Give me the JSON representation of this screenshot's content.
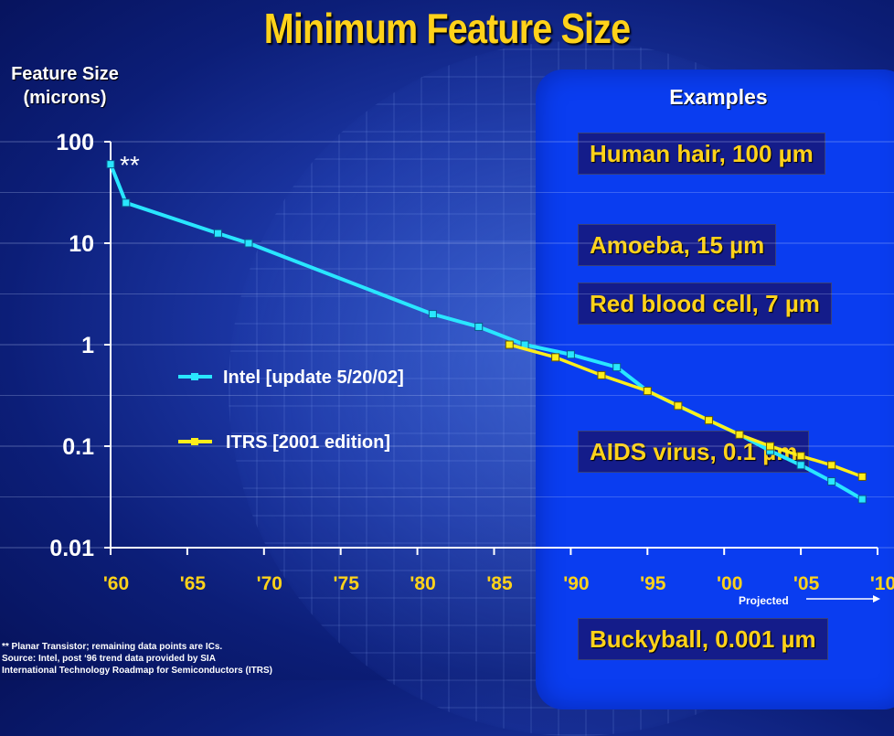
{
  "title": "Minimum Feature Size",
  "ylabel_line1": "Feature Size",
  "ylabel_line2": "(microns)",
  "examples_title": "Examples",
  "examples": [
    "Human hair, 100 µm",
    "Amoeba, 15 µm",
    "Red blood cell, 7 µm",
    "AIDS virus, 0.1 µm",
    "Buckyball, 0.001 µm"
  ],
  "asterisk": "**",
  "projected_label": "Projected",
  "footnotes": [
    "** Planar Transistor; remaining data points are ICs.",
    "Source: Intel, post ‘96 trend data provided by SIA",
    "International Technology Roadmap for Semiconductors (ITRS)"
  ],
  "colors": {
    "intel": "#29e6ff",
    "itrs": "#ffee1a",
    "title": "#ffd21a"
  },
  "chart_data": {
    "type": "line",
    "title": "Minimum Feature Size",
    "ylabel": "Feature Size (microns)",
    "xlabel": "",
    "yscale": "log",
    "ylim": [
      0.01,
      100
    ],
    "xlim": [
      1960,
      2010
    ],
    "y_ticks": [
      "100",
      "10",
      "1",
      "0.1",
      "0.01"
    ],
    "x_ticks": [
      "'60",
      "'65",
      "'70",
      "'75",
      "'80",
      "'85",
      "'90",
      "'95",
      "'00",
      "'05",
      "'10"
    ],
    "series": [
      {
        "name": "Intel [update 5/20/02]",
        "color": "#29e6ff",
        "x": [
          1960,
          1961,
          1967,
          1969,
          1981,
          1984,
          1987,
          1990,
          1993,
          1995,
          1997,
          1999,
          2001,
          2003,
          2005,
          2007,
          2009
        ],
        "y": [
          60,
          25,
          12.5,
          10,
          2,
          1.5,
          1,
          0.8,
          0.6,
          0.35,
          0.25,
          0.18,
          0.13,
          0.09,
          0.065,
          0.045,
          0.03
        ]
      },
      {
        "name": "ITRS [2001 edition]",
        "color": "#ffee1a",
        "x": [
          1986,
          1989,
          1992,
          1995,
          1997,
          1999,
          2001,
          2003,
          2005,
          2007,
          2009
        ],
        "y": [
          1.0,
          0.75,
          0.5,
          0.35,
          0.25,
          0.18,
          0.13,
          0.1,
          0.08,
          0.065,
          0.05
        ]
      }
    ]
  }
}
